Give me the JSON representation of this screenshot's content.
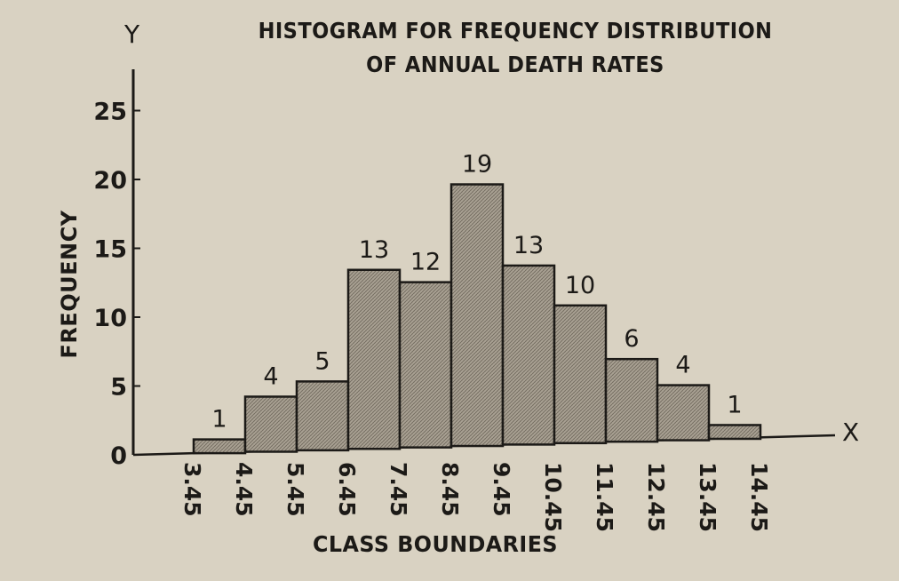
{
  "chart_data": {
    "type": "histogram",
    "title": "HISTOGRAM FOR FREQUENCY DISTRIBUTION\nOF ANNUAL DEATH RATES",
    "title_lines": [
      "HISTOGRAM FOR FREQUENCY DISTRIBUTION",
      "OF ANNUAL DEATH RATES"
    ],
    "xlabel": "CLASS BOUNDARIES",
    "ylabel": "FREQUENCY",
    "x_axis_letter": "X",
    "y_axis_letter": "Y",
    "class_boundaries": [
      "3.45",
      "4.45",
      "5.45",
      "6.45",
      "7.45",
      "8.45",
      "9.45",
      "10.45",
      "11.45",
      "12.45",
      "13.45",
      "14.45"
    ],
    "values": [
      1,
      4,
      5,
      13,
      12,
      19,
      13,
      10,
      6,
      4,
      1
    ],
    "data_labels": [
      "1",
      "4",
      "5",
      "13",
      "12",
      "19",
      "13",
      "10",
      "6",
      "4",
      "1"
    ],
    "y_ticks": [
      "0",
      "5",
      "10",
      "15",
      "20",
      "25"
    ],
    "ylim": [
      0,
      28
    ],
    "xlim": [
      3.45,
      14.45
    ],
    "grid": false,
    "bar_color": "#a49c8e",
    "paper_color": "#d9d2c2",
    "ink_color": "#1c1a17"
  }
}
